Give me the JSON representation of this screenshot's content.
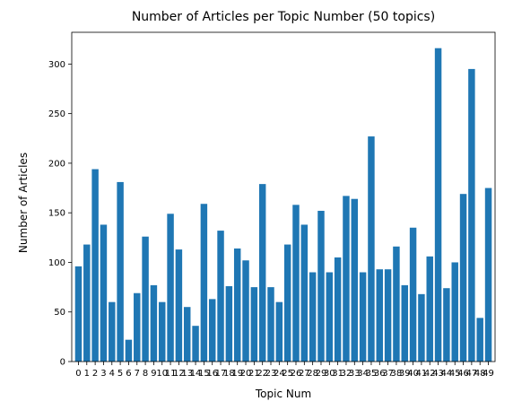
{
  "chart_data": {
    "type": "bar",
    "title": "Number of Articles per Topic Number (50 topics)",
    "xlabel": "Topic Num",
    "ylabel": "Number of Articles",
    "categories": [
      "0",
      "1",
      "2",
      "3",
      "4",
      "5",
      "6",
      "7",
      "8",
      "9",
      "10",
      "11",
      "12",
      "13",
      "14",
      "15",
      "16",
      "17",
      "18",
      "19",
      "20",
      "21",
      "22",
      "23",
      "24",
      "25",
      "26",
      "27",
      "28",
      "29",
      "30",
      "31",
      "32",
      "33",
      "34",
      "35",
      "36",
      "37",
      "38",
      "39",
      "40",
      "41",
      "42",
      "43",
      "44",
      "45",
      "46",
      "47",
      "48",
      "49"
    ],
    "values": [
      96,
      118,
      194,
      138,
      60,
      181,
      22,
      69,
      126,
      77,
      60,
      149,
      113,
      55,
      36,
      159,
      63,
      132,
      76,
      114,
      102,
      75,
      179,
      75,
      60,
      118,
      158,
      138,
      90,
      152,
      90,
      105,
      167,
      164,
      90,
      227,
      93,
      93,
      116,
      77,
      135,
      68,
      106,
      316,
      74,
      100,
      169,
      295,
      44,
      175
    ],
    "ylim": [
      0,
      332
    ],
    "yticks": [
      0,
      50,
      100,
      150,
      200,
      250,
      300
    ],
    "grid": false,
    "bar_color": "#1f77b4"
  }
}
